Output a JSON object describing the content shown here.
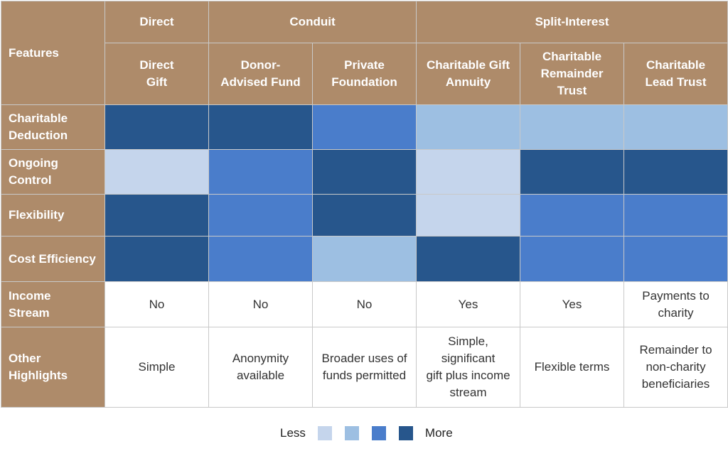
{
  "chart_data": {
    "type": "heatmap",
    "groups": [
      {
        "label": "Direct",
        "span": 1
      },
      {
        "label": "Conduit",
        "span": 2
      },
      {
        "label": "Split-Interest",
        "span": 3
      }
    ],
    "corner_label": "Features",
    "columns": [
      "Direct\nGift",
      "Donor-\nAdvised Fund",
      "Private\nFoundation",
      "Charitable Gift\nAnnuity",
      "Charitable\nRemainder\nTrust",
      "Charitable\nLead Trust"
    ],
    "heat_rows": [
      {
        "label": "Charitable\nDeduction",
        "levels": [
          4,
          4,
          3,
          2,
          2,
          2
        ]
      },
      {
        "label": "Ongoing\nControl",
        "levels": [
          1,
          3,
          4,
          1,
          4,
          4
        ]
      },
      {
        "label": "Flexibility",
        "levels": [
          4,
          3,
          4,
          1,
          3,
          3
        ]
      },
      {
        "label": "Cost Efficiency",
        "levels": [
          4,
          3,
          2,
          4,
          3,
          3
        ]
      }
    ],
    "text_rows": [
      {
        "label": "Income\nStream",
        "values": [
          "No",
          "No",
          "No",
          "Yes",
          "Yes",
          "Payments to\ncharity"
        ]
      },
      {
        "label": "Other\nHighlights",
        "values": [
          "Simple",
          "Anonymity\navailable",
          "Broader uses of\nfunds permitted",
          "Simple,\nsignificant\ngift plus income\nstream",
          "Flexible terms",
          "Remainder to\nnon-charity\nbeneficiaries"
        ]
      }
    ],
    "scale_colors": [
      "#c5d5ec",
      "#9dbfe2",
      "#4a7dcb",
      "#27568c"
    ],
    "legend": {
      "low_label": "Less",
      "high_label": "More",
      "placement": "bottom-center"
    },
    "header_color": "#ae8b6a"
  }
}
